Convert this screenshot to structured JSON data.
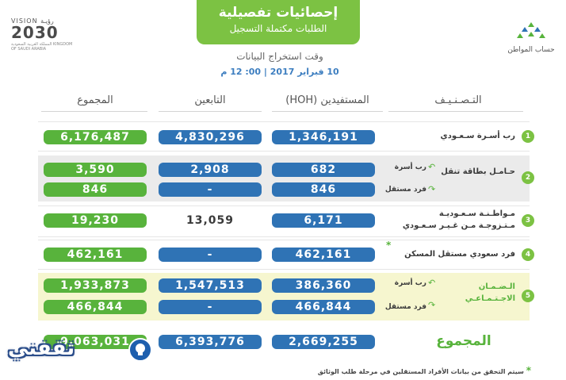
{
  "header": {
    "title": "إحصائيات تفصيلية",
    "subtitle": "الطلبات مكتملة التسجيل",
    "extract_label": "وقت استخراج البيانات",
    "extract_date": "10 فبراير 2017 | 00: 12 م"
  },
  "logos": {
    "vision_top": "VISION رؤيـة",
    "vision_year": "2030",
    "vision_sub": "المملكة العربية السعودية KINGDOM OF SAUDI ARABIA",
    "citizen_name": "حساب المواطن"
  },
  "columns": {
    "category": "التـصـنـيـف",
    "beneficiaries": "المستفيدين (HOH)",
    "dependents": "التابعين",
    "total": "المجموع"
  },
  "rows": [
    {
      "num": "1",
      "category": "رب أسـرة سـعـودي",
      "beneficiaries": "1,346,191",
      "dependents": "4,830,296",
      "total": "6,176,487"
    },
    {
      "num": "2",
      "category": "حـامـل بطاقة تنقل",
      "sub": [
        {
          "label": "رب أسرة",
          "beneficiaries": "682",
          "dependents": "2,908",
          "total": "3,590"
        },
        {
          "label": "فرد مستقل",
          "beneficiaries": "846",
          "dependents": "-",
          "total": "846"
        }
      ]
    },
    {
      "num": "3",
      "category_line1": "مـواطـنـة سـعـوديـة",
      "category_line2": "مـتـزوجـة مـن غـيـر سـعـودي",
      "beneficiaries": "6,171",
      "dependents": "13,059",
      "total": "19,230"
    },
    {
      "num": "4",
      "category": "فرد سعودي مستقل المسكن",
      "star": "*",
      "beneficiaries": "462,161",
      "dependents": "-",
      "total": "462,161"
    },
    {
      "num": "5",
      "category_line1": "الـضـمـان",
      "category_line2": "الاجـتـمـاعـي",
      "sub": [
        {
          "label": "رب أسرة",
          "beneficiaries": "386,360",
          "dependents": "1,547,513",
          "total": "1,933,873"
        },
        {
          "label": "فرد مستقل",
          "beneficiaries": "466,844",
          "dependents": "-",
          "total": "466,844"
        }
      ]
    }
  ],
  "totals": {
    "label": "المجموع",
    "beneficiaries": "2,669,255",
    "dependents": "6,393,776",
    "total": "9,063,031"
  },
  "footnote": "سيتم التحقق من بيانات الأفراد المستقلين في مرحلة طلب الوثائق",
  "footnote_star": "*",
  "watermark": "ثقفني",
  "colors": {
    "green": "#58b33c",
    "blue": "#2f73b5",
    "banner": "#7cc243"
  }
}
